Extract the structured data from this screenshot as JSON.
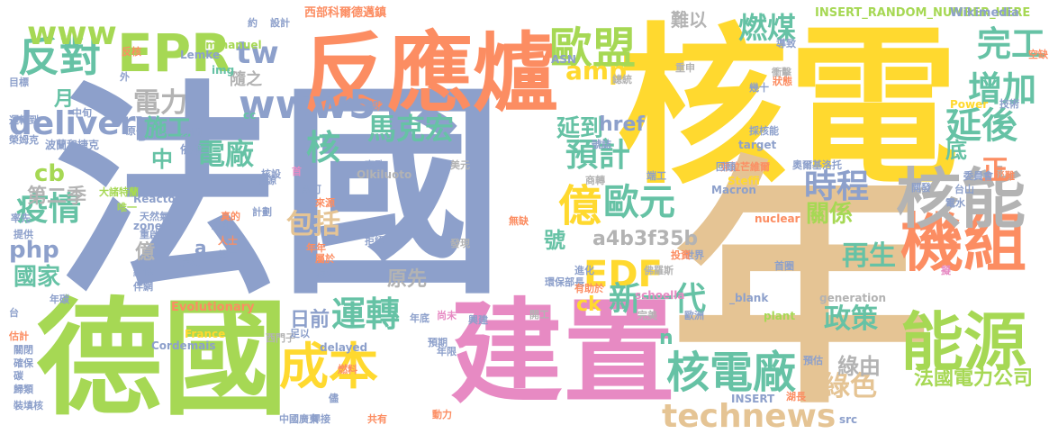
{
  "words": [
    {
      "text": "法國",
      "color": "#8da0cb"
    },
    {
      "text": "核電",
      "color": "#ffd92f"
    },
    {
      "text": "年",
      "color": "#e5c494"
    },
    {
      "text": "德國",
      "color": "#a6d854"
    },
    {
      "text": "建置",
      "color": "#e78ac3"
    },
    {
      "text": "反應爐",
      "color": "#fc8d62"
    },
    {
      "text": "機組",
      "color": "#fc8d62"
    },
    {
      "text": "核能",
      "color": "#b3b3b3"
    },
    {
      "text": "能源",
      "color": "#a6d854"
    },
    {
      "text": "EPR",
      "color": "#a6d854"
    },
    {
      "text": "成本",
      "color": "#ffd92f"
    },
    {
      "text": "歐盟",
      "color": "#a6d854"
    },
    {
      "text": "核電廠",
      "color": "#66c2a5"
    },
    {
      "text": "反對",
      "color": "#66c2a5"
    },
    {
      "text": "technews",
      "color": "#e5c494"
    },
    {
      "text": "億",
      "color": "#ffd92f"
    },
    {
      "text": "歐元",
      "color": "#66c2a5"
    },
    {
      "text": "EDF",
      "color": "#ffd92f"
    },
    {
      "text": "時程",
      "color": "#8da0cb"
    },
    {
      "text": "延後",
      "color": "#66c2a5"
    },
    {
      "text": "增加",
      "color": "#66c2a5"
    },
    {
      "text": "完工",
      "color": "#66c2a5"
    },
    {
      "text": "www5",
      "color": "#8da0cb"
    },
    {
      "text": "www",
      "color": "#a6d854"
    },
    {
      "text": "tw",
      "color": "#8da0cb"
    },
    {
      "text": "delivery",
      "color": "#8da0cb"
    },
    {
      "text": "核",
      "color": "#66c2a5"
    },
    {
      "text": "疫情",
      "color": "#66c2a5"
    },
    {
      "text": "運轉",
      "color": "#66c2a5"
    },
    {
      "text": "新一代",
      "color": "#66c2a5"
    },
    {
      "text": "馬克宏",
      "color": "#66c2a5"
    },
    {
      "text": "預計",
      "color": "#66c2a5"
    },
    {
      "text": "燃煤",
      "color": "#66c2a5"
    },
    {
      "text": "包括",
      "color": "#e5c494"
    },
    {
      "text": "電廠",
      "color": "#66c2a5"
    },
    {
      "text": "電力",
      "color": "#b3b3b3"
    },
    {
      "text": "再生",
      "color": "#66c2a5"
    },
    {
      "text": "政策",
      "color": "#66c2a5"
    },
    {
      "text": "國家",
      "color": "#66c2a5"
    },
    {
      "text": "綠色",
      "color": "#e5c494"
    },
    {
      "text": "綠由",
      "color": "#b3b3b3"
    },
    {
      "text": "法國電力公司",
      "color": "#a6d854"
    },
    {
      "text": "amp",
      "color": "#ffd92f"
    },
    {
      "text": "a4b3f35b",
      "color": "#b3b3b3"
    },
    {
      "text": "php",
      "color": "#8da0cb"
    },
    {
      "text": "cb",
      "color": "#a6d854"
    },
    {
      "text": "第二季",
      "color": "#b3b3b3"
    },
    {
      "text": "施工",
      "color": "#66c2a5"
    },
    {
      "text": "延到",
      "color": "#66c2a5"
    },
    {
      "text": "關係",
      "color": "#a6d854"
    },
    {
      "text": "正",
      "color": "#fc8d62"
    },
    {
      "text": "底",
      "color": "#66c2a5"
    },
    {
      "text": "號",
      "color": "#66c2a5"
    },
    {
      "text": "中",
      "color": "#66c2a5"
    },
    {
      "text": "月",
      "color": "#66c2a5"
    },
    {
      "text": "日前",
      "color": "#8da0cb"
    },
    {
      "text": "ck",
      "color": "#ffd92f"
    },
    {
      "text": "href",
      "color": "#8da0cb"
    },
    {
      "text": "原先",
      "color": "#b3b3b3"
    },
    {
      "text": "n",
      "color": "#66c2a5"
    },
    {
      "text": "億",
      "color": "#b3b3b3"
    },
    {
      "text": "a",
      "color": "#8da0cb"
    },
    {
      "text": "難以",
      "color": "#b3b3b3"
    },
    {
      "text": "隨之",
      "color": "#b3b3b3"
    },
    {
      "text": "INSERT_RANDOM_NUMBER_HERE",
      "color": "#a6d854"
    },
    {
      "text": "西部科爾德邁鎮",
      "color": "#fc8d62"
    },
    {
      "text": "Wikimedia",
      "color": "#8da0cb"
    },
    {
      "text": "Olkiluoto",
      "color": "#b3b3b3"
    },
    {
      "text": "Evolutionary",
      "color": "#fc8d62"
    },
    {
      "text": "Reactor",
      "color": "#8da0cb"
    },
    {
      "text": "Emmanuel",
      "color": "#a6d854"
    },
    {
      "text": "Macron",
      "color": "#8da0cb"
    },
    {
      "text": "generation",
      "color": "#b3b3b3"
    },
    {
      "text": "target",
      "color": "#8da0cb"
    },
    {
      "text": "_blank",
      "color": "#8da0cb"
    },
    {
      "text": "nuclear",
      "color": "#fc8d62"
    },
    {
      "text": "schoella",
      "color": "#e78ac3"
    },
    {
      "text": "Cordemais",
      "color": "#8da0cb"
    },
    {
      "text": "Lemke",
      "color": "#8da0cb"
    },
    {
      "text": "Steffi",
      "color": "#ffd92f"
    },
    {
      "text": "zoneid",
      "color": "#8da0cb"
    },
    {
      "text": "delayed",
      "color": "#8da0cb"
    },
    {
      "text": "France",
      "color": "#ffd92f"
    },
    {
      "text": "plant",
      "color": "#a6d854"
    },
    {
      "text": "Power",
      "color": "#ffd92f"
    },
    {
      "text": "aw",
      "color": "#b3b3b3"
    },
    {
      "text": "img",
      "color": "#66c2a5"
    },
    {
      "text": "ASN",
      "color": "#8da0cb"
    },
    {
      "text": "src",
      "color": "#8da0cb"
    },
    {
      "text": "cc",
      "color": "#66c2a5"
    },
    {
      "text": "INSERT",
      "color": "#8da0cb"
    },
    {
      "text": "芬蘭",
      "color": "#8da0cb"
    },
    {
      "text": "依賴",
      "color": "#8da0cb"
    },
    {
      "text": "波蘭和捷克",
      "color": "#8da0cb"
    },
    {
      "text": "大諸特蘭",
      "color": "#a6d854"
    },
    {
      "text": "中國廣東",
      "color": "#8da0cb"
    },
    {
      "text": "天然氣",
      "color": "#8da0cb"
    },
    {
      "text": "西門子",
      "color": "#b3b3b3"
    },
    {
      "text": "東歐",
      "color": "#8da0cb"
    },
    {
      "text": "美元",
      "color": "#b3b3b3"
    },
    {
      "text": "弗拉芒維爾",
      "color": "#fc8d62"
    },
    {
      "text": "奧爾基洛托",
      "color": "#8da0cb"
    },
    {
      "text": "歐洲",
      "color": "#8da0cb"
    },
    {
      "text": "世界",
      "color": "#8da0cb"
    },
    {
      "text": "環保部長",
      "color": "#8da0cb"
    },
    {
      "text": "佛羅斯",
      "color": "#b3b3b3"
    },
    {
      "text": "無缺",
      "color": "#fc8d62"
    },
    {
      "text": "發現",
      "color": "#b3b3b3"
    },
    {
      "text": "燃料",
      "color": "#fc8d62"
    },
    {
      "text": "年限",
      "color": "#8da0cb"
    },
    {
      "text": "焊接",
      "color": "#8da0cb"
    },
    {
      "text": "共有",
      "color": "#fc8d62"
    },
    {
      "text": "動力",
      "color": "#fc8d62"
    },
    {
      "text": "拒絕",
      "color": "#8da0cb"
    },
    {
      "text": "預期",
      "color": "#8da0cb"
    },
    {
      "text": "興建",
      "color": "#8da0cb"
    },
    {
      "text": "尚未",
      "color": "#e78ac3"
    },
    {
      "text": "年底",
      "color": "#8da0cb"
    },
    {
      "text": "開工",
      "color": "#b3b3b3"
    },
    {
      "text": "完美",
      "color": "#b3b3b3"
    },
    {
      "text": "委員會",
      "color": "#8da0cb"
    },
    {
      "text": "台山",
      "color": "#8da0cb"
    },
    {
      "text": "災難",
      "color": "#fc8d62"
    },
    {
      "text": "衝擊",
      "color": "#b3b3b3"
    },
    {
      "text": "重申",
      "color": "#b3b3b3"
    },
    {
      "text": "總統",
      "color": "#b3b3b3"
    },
    {
      "text": "採核能",
      "color": "#8da0cb"
    },
    {
      "text": "回頭",
      "color": "#8da0cb"
    },
    {
      "text": "商轉",
      "color": "#b3b3b3"
    },
    {
      "text": "端工",
      "color": "#8da0cb"
    },
    {
      "text": "投資",
      "color": "#fc8d62"
    },
    {
      "text": "首圈",
      "color": "#8da0cb"
    },
    {
      "text": "預估",
      "color": "#8da0cb"
    },
    {
      "text": "湖長",
      "color": "#fc8d62"
    },
    {
      "text": "有助於",
      "color": "#fc8d62"
    },
    {
      "text": "進化",
      "color": "#8da0cb"
    },
    {
      "text": "人士",
      "color": "#fc8d62"
    },
    {
      "text": "細節",
      "color": "#8da0cb"
    },
    {
      "text": "提及",
      "color": "#8da0cb"
    },
    {
      "text": "第三",
      "color": "#8da0cb"
    },
    {
      "text": "重啟",
      "color": "#8da0cb"
    },
    {
      "text": "維修",
      "color": "#8da0cb"
    },
    {
      "text": "伴網",
      "color": "#8da0cb"
    },
    {
      "text": "估計",
      "color": "#fc8d62"
    },
    {
      "text": "關閉",
      "color": "#8da0cb"
    },
    {
      "text": "確保",
      "color": "#8da0cb"
    },
    {
      "text": "裝填核",
      "color": "#8da0cb"
    },
    {
      "text": "歸類",
      "color": "#8da0cb"
    },
    {
      "text": "碳",
      "color": "#8da0cb"
    },
    {
      "text": "年碳",
      "color": "#8da0cb"
    },
    {
      "text": "台",
      "color": "#8da0cb"
    },
    {
      "text": "唯一",
      "color": "#a6d854"
    },
    {
      "text": "提供",
      "color": "#8da0cb"
    },
    {
      "text": "率先",
      "color": "#8da0cb"
    },
    {
      "text": "榮姆克",
      "color": "#8da0cb"
    },
    {
      "text": "運轉到",
      "color": "#8da0cb"
    },
    {
      "text": "目標",
      "color": "#8da0cb"
    },
    {
      "text": "原子",
      "color": "#8da0cb"
    },
    {
      "text": "中旬",
      "color": "#8da0cb"
    },
    {
      "text": "反核",
      "color": "#fc8d62"
    },
    {
      "text": "設計",
      "color": "#8da0cb"
    },
    {
      "text": "約",
      "color": "#8da0cb"
    },
    {
      "text": "外",
      "color": "#8da0cb"
    },
    {
      "text": "核設",
      "color": "#8da0cb"
    },
    {
      "text": "計劃",
      "color": "#8da0cb"
    },
    {
      "text": "認可",
      "color": "#8da0cb"
    },
    {
      "text": "來源",
      "color": "#fc8d62"
    },
    {
      "text": "真的",
      "color": "#fc8d62"
    },
    {
      "text": "認為",
      "color": "#8da0cb"
    },
    {
      "text": "足以",
      "color": "#8da0cb"
    },
    {
      "text": "屬於",
      "color": "#fc8d62"
    },
    {
      "text": "獨立",
      "color": "#8da0cb"
    },
    {
      "text": "年年",
      "color": "#fc8d62"
    },
    {
      "text": "儘",
      "color": "#8da0cb"
    },
    {
      "text": "狀態",
      "color": "#fc8d62"
    },
    {
      "text": "導致",
      "color": "#8da0cb"
    },
    {
      "text": "幾十",
      "color": "#8da0cb"
    },
    {
      "text": "技術",
      "color": "#8da0cb"
    },
    {
      "text": "號誌",
      "color": "#8da0cb"
    },
    {
      "text": "核源",
      "color": "#8da0cb"
    },
    {
      "text": "首",
      "color": "#e78ac3"
    },
    {
      "text": "空缺",
      "color": "#fc8d62"
    },
    {
      "text": "電水",
      "color": "#8da0cb"
    },
    {
      "text": "開發",
      "color": "#8da0cb"
    },
    {
      "text": "擬",
      "color": "#e78ac3"
    }
  ]
}
